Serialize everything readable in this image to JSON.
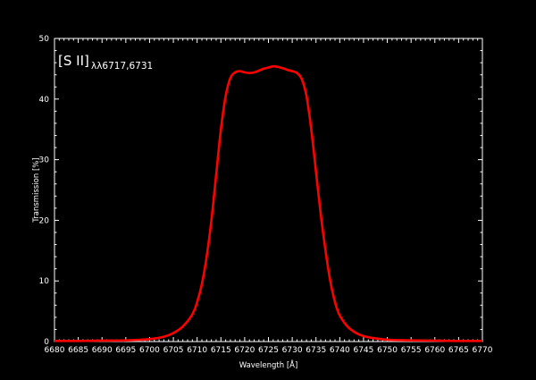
{
  "chart_data": {
    "type": "line",
    "title": "",
    "xlabel": "Wavelength [Å]",
    "ylabel": "Transmission [%]",
    "xlim": [
      6680,
      6770
    ],
    "ylim": [
      0,
      50
    ],
    "x_ticks": [
      6680,
      6685,
      6690,
      6695,
      6700,
      6705,
      6710,
      6715,
      6720,
      6725,
      6730,
      6735,
      6740,
      6745,
      6750,
      6755,
      6760,
      6765,
      6770
    ],
    "y_ticks": [
      0,
      10,
      20,
      30,
      40,
      50
    ],
    "grid": false,
    "background": "#000000",
    "foreground": "#ffffff",
    "annotation": {
      "main": "[S II]",
      "sub": "λλ6717,6731"
    },
    "series": [
      {
        "color": "#ff0000",
        "x": [
          6680,
          6685,
          6690,
          6695,
          6700,
          6703,
          6705,
          6707,
          6709,
          6710,
          6711,
          6712,
          6713,
          6714,
          6715,
          6716,
          6717,
          6718,
          6719,
          6720,
          6721,
          6722,
          6723,
          6724,
          6725,
          6726,
          6727,
          6728,
          6729,
          6730,
          6731,
          6732,
          6733,
          6734,
          6735,
          6736,
          6737,
          6738,
          6739,
          6740,
          6742,
          6745,
          6750,
          6755,
          6760,
          6765,
          6770
        ],
        "y": [
          0.1,
          0.1,
          0.15,
          0.2,
          0.4,
          0.8,
          1.4,
          2.5,
          4.5,
          6.5,
          9.5,
          14.0,
          20.0,
          27.5,
          35.0,
          40.5,
          43.5,
          44.4,
          44.6,
          44.4,
          44.3,
          44.4,
          44.7,
          45.0,
          45.2,
          45.4,
          45.3,
          45.1,
          44.8,
          44.6,
          44.3,
          43.3,
          40.5,
          35.0,
          28.0,
          21.0,
          15.0,
          10.0,
          6.5,
          4.3,
          2.2,
          0.9,
          0.3,
          0.2,
          0.15,
          0.1,
          0.1
        ]
      }
    ]
  }
}
